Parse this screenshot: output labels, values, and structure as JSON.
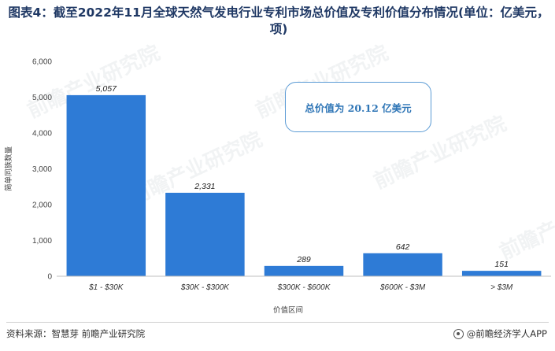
{
  "title": "图表4：截至2022年11月全球天然气发电行业专利市场总价值及专利价值分布情况(单位：亿美元，项)",
  "annotation": "总价值为 20.12 亿美元",
  "footer": {
    "source": "资料来源：智慧芽 前瞻产业研究院",
    "brand": "@前瞻经济学人APP"
  },
  "watermark": "前瞻产业研究院",
  "chart_data": {
    "type": "bar",
    "title": "图表4：截至2022年11月全球天然气发电行业专利市场总价值及专利价值分布情况(单位：亿美元，项)",
    "xlabel": "价值区间",
    "ylabel": "简单同族数量",
    "categories": [
      "$1 - $30K",
      "$30K - $300K",
      "$300K - $600K",
      "$600K - $3M",
      "> $3M"
    ],
    "values": [
      5057,
      2331,
      289,
      642,
      151
    ],
    "value_labels": [
      "5,057",
      "2,331",
      "289",
      "642",
      "151"
    ],
    "ylim": [
      0,
      6000
    ],
    "yticks": [
      0,
      1000,
      2000,
      3000,
      4000,
      5000,
      6000
    ],
    "ytick_labels": [
      "0",
      "1,000",
      "2,000",
      "3,000",
      "4,000",
      "5,000",
      "6,000"
    ],
    "bar_color": "#2e7bd6",
    "grid": false,
    "legend": "none"
  }
}
